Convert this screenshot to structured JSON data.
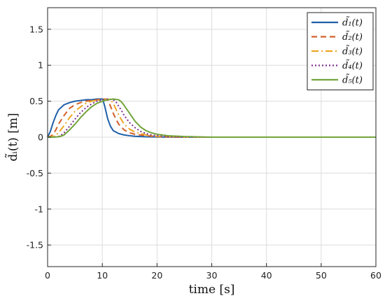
{
  "chart_data": {
    "type": "line",
    "title": "",
    "xlabel": "time [s]",
    "ylabel": "d̃ᵢ(t) [m]",
    "xlim": [
      0,
      60
    ],
    "ylim": [
      -1.8,
      1.8
    ],
    "xticks": [
      0,
      10,
      20,
      30,
      40,
      50,
      60
    ],
    "yticks": [
      -1.5,
      -1,
      -0.5,
      0,
      0.5,
      1,
      1.5
    ],
    "xtick_labels": [
      "0",
      "10",
      "20",
      "30",
      "40",
      "50",
      "60"
    ],
    "ytick_labels": [
      "-1.5",
      "-1",
      "-0.5",
      "0",
      "0.5",
      "1",
      "1.5"
    ],
    "grid": true,
    "legend_position": "top-right",
    "series": [
      {
        "name": "d̃₁(t)",
        "color": "#1f5fa8",
        "dash": "solid",
        "x": [
          0,
          0.5,
          1,
          1.5,
          2,
          3,
          4,
          5,
          6,
          7,
          8,
          9,
          10,
          10.3,
          10.6,
          11,
          11.5,
          12,
          13,
          14,
          15,
          16,
          18,
          20,
          25,
          30,
          60
        ],
        "y": [
          0,
          0.08,
          0.2,
          0.3,
          0.38,
          0.45,
          0.48,
          0.5,
          0.51,
          0.52,
          0.52,
          0.53,
          0.53,
          0.47,
          0.38,
          0.25,
          0.15,
          0.09,
          0.05,
          0.03,
          0.02,
          0.012,
          0.005,
          0.002,
          0,
          0,
          0
        ]
      },
      {
        "name": "d̃₂(t)",
        "color": "#d35f2a",
        "dash": "8,5",
        "x": [
          0,
          0.5,
          1,
          1.5,
          2,
          3,
          4,
          5,
          6,
          7,
          8,
          9,
          10,
          10.5,
          11,
          11.5,
          12,
          12.5,
          13,
          14,
          15,
          16,
          18,
          20,
          25,
          60
        ],
        "y": [
          0,
          0.01,
          0.04,
          0.1,
          0.18,
          0.3,
          0.4,
          0.45,
          0.48,
          0.5,
          0.51,
          0.52,
          0.53,
          0.53,
          0.52,
          0.43,
          0.33,
          0.25,
          0.18,
          0.1,
          0.06,
          0.04,
          0.02,
          0.008,
          0,
          0
        ]
      },
      {
        "name": "d̃₃(t)",
        "color": "#eda424",
        "dash": "10,4,2,4",
        "x": [
          0,
          1,
          1.5,
          2,
          3,
          4,
          5,
          6,
          7,
          8,
          9,
          10,
          11,
          11.5,
          12,
          12.5,
          13,
          13.5,
          14,
          15,
          16,
          17,
          18,
          20,
          25,
          60
        ],
        "y": [
          0,
          0.01,
          0.03,
          0.06,
          0.16,
          0.27,
          0.36,
          0.42,
          0.47,
          0.5,
          0.51,
          0.52,
          0.53,
          0.52,
          0.47,
          0.39,
          0.31,
          0.24,
          0.18,
          0.11,
          0.07,
          0.05,
          0.03,
          0.01,
          0,
          0
        ]
      },
      {
        "name": "d̃₄(t)",
        "color": "#7b2d8e",
        "dash": "2,3",
        "x": [
          0,
          1,
          2,
          2.5,
          3,
          4,
          5,
          6,
          7,
          8,
          9,
          10,
          11,
          12,
          12.5,
          13,
          13.5,
          14,
          15,
          16,
          17,
          18,
          19,
          20,
          22,
          25,
          60
        ],
        "y": [
          0,
          0,
          0.01,
          0.03,
          0.06,
          0.15,
          0.25,
          0.34,
          0.41,
          0.46,
          0.5,
          0.52,
          0.53,
          0.52,
          0.49,
          0.43,
          0.37,
          0.3,
          0.2,
          0.13,
          0.08,
          0.05,
          0.03,
          0.02,
          0.008,
          0,
          0
        ]
      },
      {
        "name": "d̃₅(t)",
        "color": "#72a43a",
        "dash": "solid",
        "x": [
          0,
          1,
          2,
          2.5,
          3,
          4,
          5,
          6,
          7,
          8,
          9,
          10,
          11,
          12,
          13,
          13.5,
          14,
          15,
          16,
          17,
          18,
          19,
          20,
          22,
          25,
          30,
          60
        ],
        "y": [
          0,
          0,
          0.005,
          0.015,
          0.03,
          0.1,
          0.18,
          0.27,
          0.35,
          0.42,
          0.47,
          0.5,
          0.52,
          0.53,
          0.52,
          0.49,
          0.44,
          0.33,
          0.22,
          0.14,
          0.09,
          0.06,
          0.04,
          0.02,
          0.008,
          0,
          0
        ]
      }
    ]
  }
}
